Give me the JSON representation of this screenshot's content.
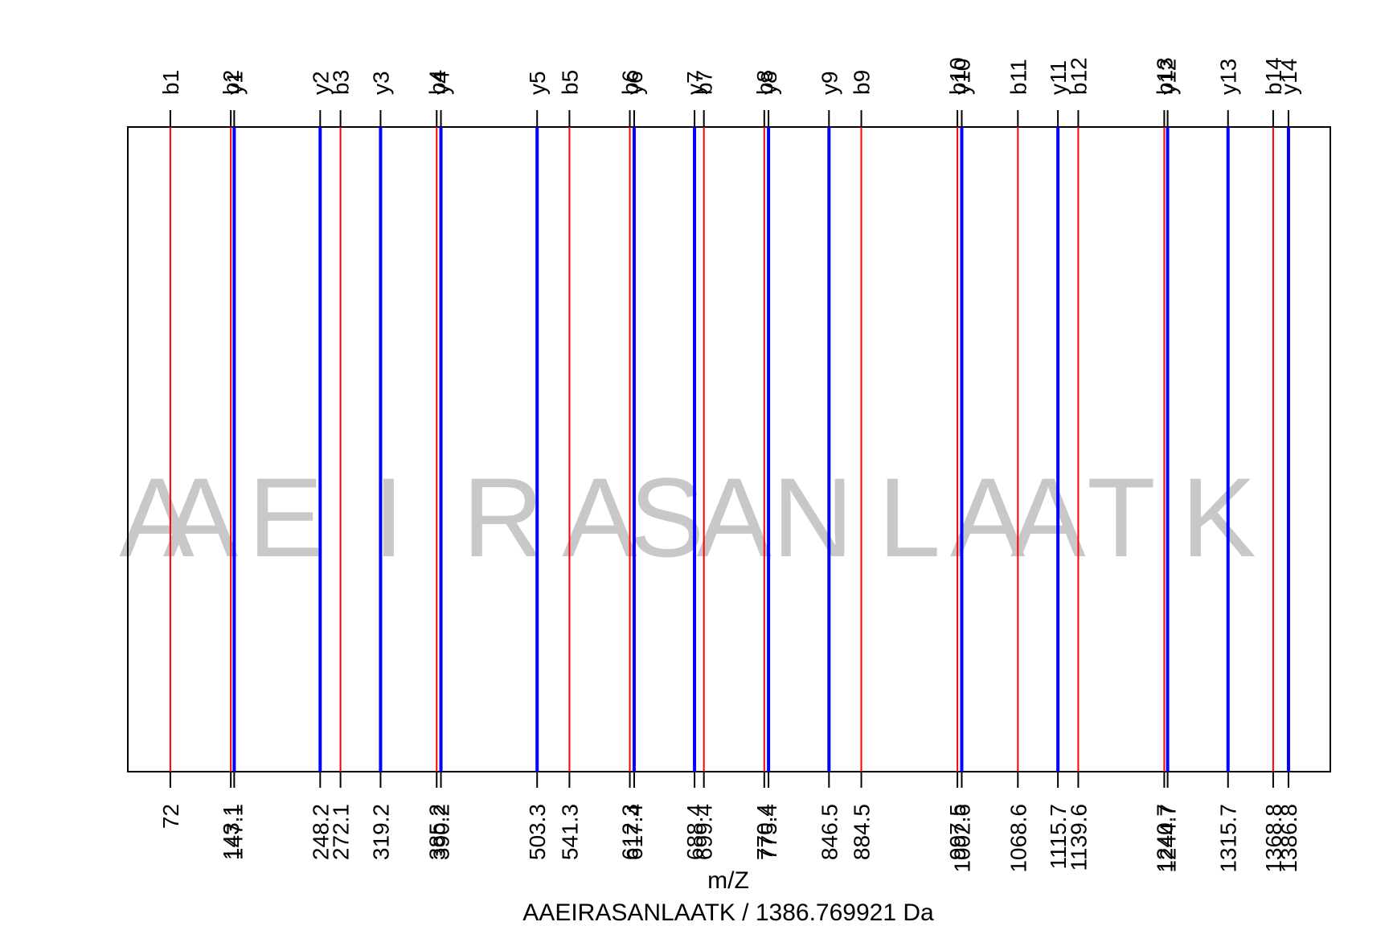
{
  "chart_data": {
    "type": "spectrum",
    "title": "AAEIRASANLAATK / 1386.769921 Da",
    "xlabel": "m/Z",
    "xlim": [
      22,
      1436
    ],
    "sequence": [
      "A",
      "A",
      "E",
      "I",
      "R",
      "A",
      "S",
      "A",
      "N",
      "L",
      "A",
      "A",
      "T",
      "K"
    ],
    "colors": {
      "b": "#ff0000",
      "y": "#0000ff",
      "frame": "#000000",
      "sequence": "#c8c8c8"
    },
    "series": [
      {
        "name": "b",
        "ions": [
          {
            "label": "b1",
            "mz": 72.0,
            "value_label": "72"
          },
          {
            "label": "b2",
            "mz": 143.1,
            "value_label": "143.1"
          },
          {
            "label": "b3",
            "mz": 272.1,
            "value_label": "272.1"
          },
          {
            "label": "b4",
            "mz": 385.2,
            "value_label": "385.2"
          },
          {
            "label": "b5",
            "mz": 541.3,
            "value_label": "541.3"
          },
          {
            "label": "b6",
            "mz": 612.3,
            "value_label": "612.3"
          },
          {
            "label": "b7",
            "mz": 699.4,
            "value_label": "699.4"
          },
          {
            "label": "b8",
            "mz": 770.4,
            "value_label": "770.4"
          },
          {
            "label": "b9",
            "mz": 884.5,
            "value_label": "884.5"
          },
          {
            "label": "b10",
            "mz": 997.5,
            "value_label": "997.5"
          },
          {
            "label": "b11",
            "mz": 1068.6,
            "value_label": "1068.6"
          },
          {
            "label": "b12",
            "mz": 1139.6,
            "value_label": "1139.6"
          },
          {
            "label": "b13",
            "mz": 1240.7,
            "value_label": "1240.7"
          },
          {
            "label": "b14",
            "mz": 1368.8,
            "value_label": "1368.8"
          }
        ]
      },
      {
        "name": "y",
        "ions": [
          {
            "label": "y1",
            "mz": 147.1,
            "value_label": "147.1"
          },
          {
            "label": "y2",
            "mz": 248.2,
            "value_label": "248.2"
          },
          {
            "label": "y3",
            "mz": 319.2,
            "value_label": "319.2"
          },
          {
            "label": "y4",
            "mz": 390.2,
            "value_label": "390.2"
          },
          {
            "label": "y5",
            "mz": 503.3,
            "value_label": "503.3"
          },
          {
            "label": "y6",
            "mz": 617.4,
            "value_label": "617.4"
          },
          {
            "label": "y7",
            "mz": 688.4,
            "value_label": "688.4"
          },
          {
            "label": "y8",
            "mz": 775.4,
            "value_label": "775.4"
          },
          {
            "label": "y9",
            "mz": 846.5,
            "value_label": "846.5"
          },
          {
            "label": "y10",
            "mz": 1002.6,
            "value_label": "1002.6"
          },
          {
            "label": "y11",
            "mz": 1115.7,
            "value_label": "1115.7"
          },
          {
            "label": "y12",
            "mz": 1244.7,
            "value_label": "1244.7"
          },
          {
            "label": "y13",
            "mz": 1315.7,
            "value_label": "1315.7"
          },
          {
            "label": "y14",
            "mz": 1386.8,
            "value_label": "1386.8"
          }
        ]
      }
    ]
  }
}
